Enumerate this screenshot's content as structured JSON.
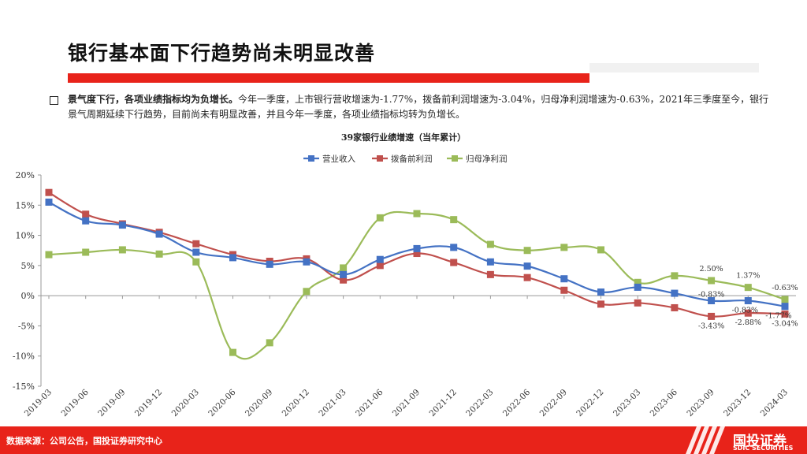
{
  "page": {
    "title": "银行基本面下行趋势尚未明显改善",
    "bullet_bold": "景气度下行，各项业绩指标均为负增长。",
    "bullet_text": "今年一季度，上市银行营收增速为-1.77%，拨备前利润增速为-3.04%，归母净利润增速为-0.63%，2021年三季度至今，银行景气周期延续下行趋势，目前尚未有明显改善，并且今年一季度，各项业绩指标均转为负增长。",
    "footer_source": "数据来源：公司公告，国投证券研究中心",
    "logo_cn": "国投证券",
    "logo_en": "SDIC SECURITIES"
  },
  "chart_data": {
    "type": "line",
    "title": "39家银行业绩增速（当年累计）",
    "xlabel": "",
    "ylabel": "",
    "ylim": [
      -15,
      20
    ],
    "yticks": [
      -15,
      -10,
      -5,
      0,
      5,
      10,
      15,
      20
    ],
    "ytick_labels": [
      "-15%",
      "-10%",
      "-5%",
      "0%",
      "5%",
      "10%",
      "15%",
      "20%"
    ],
    "grid": false,
    "legend_position": "top",
    "categories": [
      "2019-03",
      "2019-06",
      "2019-09",
      "2019-12",
      "2020-03",
      "2020-06",
      "2020-09",
      "2020-12",
      "2021-03",
      "2021-06",
      "2021-09",
      "2021-12",
      "2022-03",
      "2022-06",
      "2022-09",
      "2022-12",
      "2023-03",
      "2023-06",
      "2023-09",
      "2023-12",
      "2024-03"
    ],
    "series": [
      {
        "name": "营业收入",
        "color": "#4472c4",
        "values": [
          15.5,
          12.4,
          11.7,
          10.2,
          7.2,
          6.3,
          5.2,
          5.6,
          3.5,
          6.0,
          7.8,
          8.0,
          5.6,
          4.9,
          2.8,
          0.6,
          1.4,
          0.4,
          -0.83,
          -0.83,
          -1.77
        ]
      },
      {
        "name": "拨备前利润",
        "color": "#c0504d",
        "values": [
          17.1,
          13.5,
          11.9,
          10.5,
          8.6,
          6.8,
          5.7,
          6.1,
          2.6,
          5.0,
          7.0,
          5.5,
          3.5,
          3.0,
          0.9,
          -1.4,
          -1.2,
          -2.0,
          -3.43,
          -2.88,
          -3.04
        ]
      },
      {
        "name": "归母净利润",
        "color": "#9bbb59",
        "values": [
          6.8,
          7.2,
          7.6,
          6.9,
          5.6,
          -9.4,
          -7.8,
          0.7,
          4.6,
          12.9,
          13.6,
          12.6,
          8.5,
          7.5,
          8.0,
          7.6,
          2.2,
          3.3,
          2.5,
          1.37,
          -0.63
        ]
      }
    ],
    "annotations": [
      {
        "series": 2,
        "index": 18,
        "text": "2.50%"
      },
      {
        "series": 2,
        "index": 19,
        "text": "1.37%"
      },
      {
        "series": 2,
        "index": 20,
        "text": "-0.63%"
      },
      {
        "series": 0,
        "index": 18,
        "text": "-0.83%"
      },
      {
        "series": 0,
        "index": 19,
        "text": "-0.83%"
      },
      {
        "series": 0,
        "index": 20,
        "text": "-1.77%"
      },
      {
        "series": 1,
        "index": 18,
        "text": "-3.43%"
      },
      {
        "series": 1,
        "index": 19,
        "text": "-2.88%"
      },
      {
        "series": 1,
        "index": 20,
        "text": "-3.04%"
      }
    ]
  }
}
